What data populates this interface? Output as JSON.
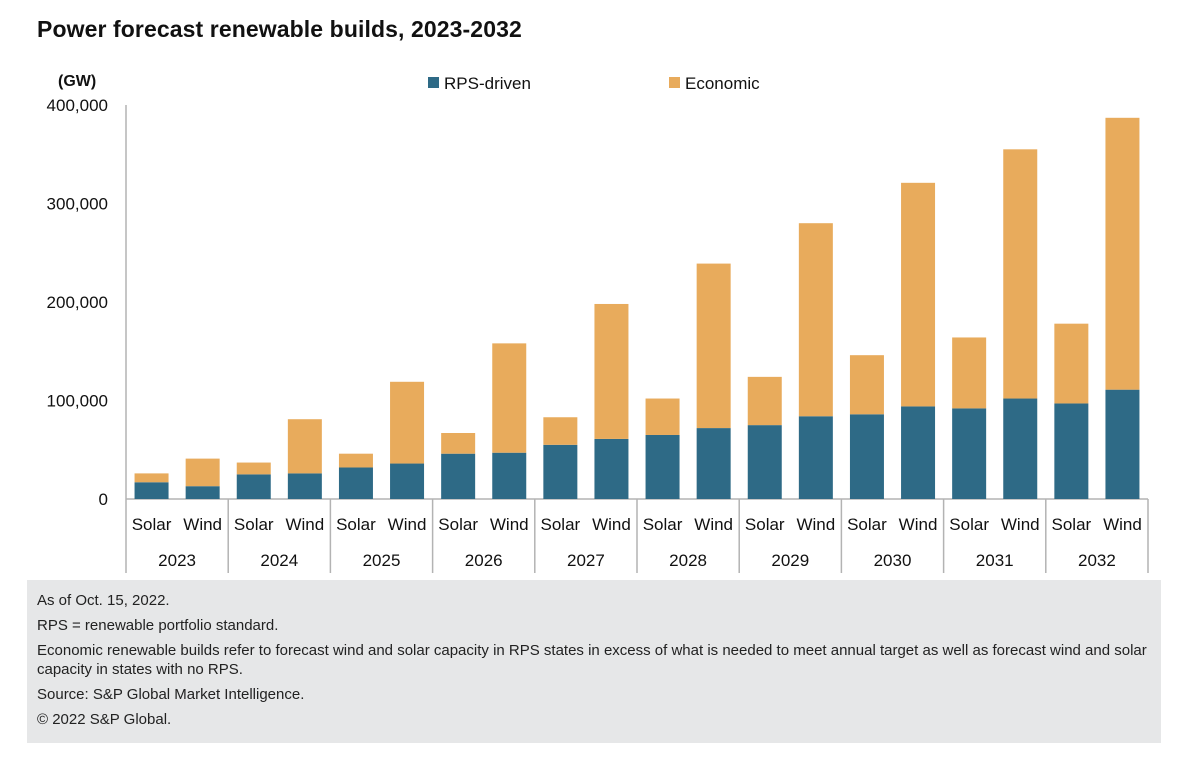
{
  "title": "Power forecast renewable builds, 2023-2032",
  "notes": [
    "As of Oct. 15, 2022.",
    "RPS = renewable portfolio standard.",
    "Economic renewable builds refer to forecast wind and solar capacity in RPS states in excess of what is needed to meet annual target as well as forecast wind and solar capacity in states with no RPS.",
    "Source: S&P Global Market Intelligence.",
    "© 2022 S&P Global."
  ],
  "colors": {
    "rps": "#2e6a86",
    "economic": "#e8ab5c",
    "axis": "#b3b3b3"
  },
  "chart_data": {
    "type": "bar",
    "stacked": true,
    "unit_label": "(GW)",
    "ylim": [
      0,
      400000
    ],
    "yticks": [
      0,
      100000,
      200000,
      300000,
      400000
    ],
    "ytick_labels": [
      "0",
      "100,000",
      "200,000",
      "300,000",
      "400,000"
    ],
    "legend_position": "top",
    "groups": [
      "2023",
      "2024",
      "2025",
      "2026",
      "2027",
      "2028",
      "2029",
      "2030",
      "2031",
      "2032"
    ],
    "categories": [
      "Solar",
      "Wind"
    ],
    "series": [
      {
        "name": "RPS-driven",
        "values": [
          [
            17000,
            13000
          ],
          [
            25000,
            26000
          ],
          [
            32000,
            36000
          ],
          [
            46000,
            47000
          ],
          [
            55000,
            61000
          ],
          [
            65000,
            72000
          ],
          [
            75000,
            84000
          ],
          [
            86000,
            94000
          ],
          [
            92000,
            102000
          ],
          [
            97000,
            111000
          ]
        ]
      },
      {
        "name": "Economic",
        "values": [
          [
            9000,
            28000
          ],
          [
            12000,
            55000
          ],
          [
            14000,
            83000
          ],
          [
            21000,
            111000
          ],
          [
            28000,
            137000
          ],
          [
            37000,
            167000
          ],
          [
            49000,
            196000
          ],
          [
            60000,
            227000
          ],
          [
            72000,
            253000
          ],
          [
            81000,
            276000
          ]
        ]
      }
    ]
  }
}
